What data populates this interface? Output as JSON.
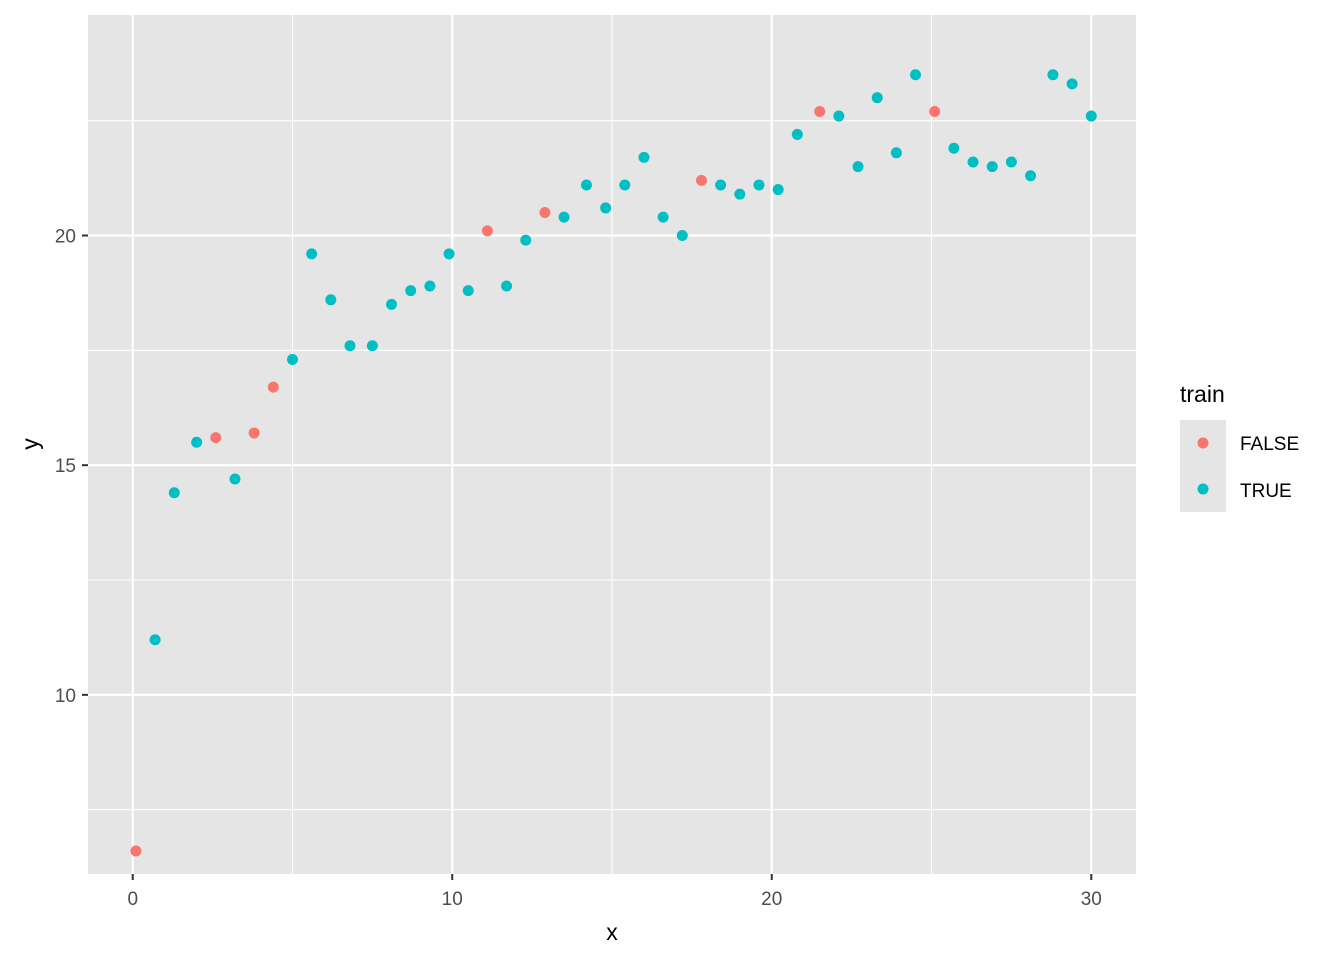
{
  "chart_data": {
    "type": "scatter",
    "xlabel": "x",
    "ylabel": "y",
    "xlim": [
      -1.4,
      31.4
    ],
    "ylim": [
      6.1,
      24.8
    ],
    "x_ticks": [
      0,
      10,
      20,
      30
    ],
    "x_tick_labels": [
      "0",
      "10",
      "20",
      "30"
    ],
    "y_ticks": [
      10,
      15,
      20
    ],
    "y_tick_labels": [
      "10",
      "15",
      "20"
    ],
    "x_minor_ticks": [
      5,
      15,
      25
    ],
    "y_minor_ticks": [
      7.5,
      12.5,
      17.5,
      22.5
    ],
    "grid": true,
    "legend": {
      "title": "train",
      "placement": "right",
      "entries": [
        {
          "label": "FALSE",
          "color": "#F8766D"
        },
        {
          "label": "TRUE",
          "color": "#00BFC4"
        }
      ]
    },
    "series": [
      {
        "name": "FALSE",
        "color": "#F8766D",
        "points": [
          [
            0.1,
            6.6
          ],
          [
            2.6,
            15.6
          ],
          [
            3.8,
            15.7
          ],
          [
            4.4,
            16.7
          ],
          [
            11.1,
            20.1
          ],
          [
            12.9,
            20.5
          ],
          [
            17.8,
            21.2
          ],
          [
            21.5,
            22.7
          ],
          [
            25.1,
            22.7
          ]
        ]
      },
      {
        "name": "TRUE",
        "color": "#00BFC4",
        "points": [
          [
            0.7,
            11.2
          ],
          [
            1.3,
            14.4
          ],
          [
            2.0,
            15.5
          ],
          [
            3.2,
            14.7
          ],
          [
            5.0,
            17.3
          ],
          [
            5.6,
            19.6
          ],
          [
            6.2,
            18.6
          ],
          [
            6.8,
            17.6
          ],
          [
            7.5,
            17.6
          ],
          [
            8.1,
            18.5
          ],
          [
            8.7,
            18.8
          ],
          [
            9.3,
            18.9
          ],
          [
            9.9,
            19.6
          ],
          [
            10.5,
            18.8
          ],
          [
            11.7,
            18.9
          ],
          [
            12.3,
            19.9
          ],
          [
            13.5,
            20.4
          ],
          [
            14.2,
            21.1
          ],
          [
            14.8,
            20.6
          ],
          [
            15.4,
            21.1
          ],
          [
            16.0,
            21.7
          ],
          [
            16.6,
            20.4
          ],
          [
            17.2,
            20.0
          ],
          [
            18.4,
            21.1
          ],
          [
            19.0,
            20.9
          ],
          [
            19.6,
            21.1
          ],
          [
            20.2,
            21.0
          ],
          [
            20.8,
            22.2
          ],
          [
            22.1,
            22.6
          ],
          [
            22.7,
            21.5
          ],
          [
            23.3,
            23.0
          ],
          [
            23.9,
            21.8
          ],
          [
            24.5,
            23.5
          ],
          [
            25.7,
            21.9
          ],
          [
            26.3,
            21.6
          ],
          [
            26.9,
            21.5
          ],
          [
            27.5,
            21.6
          ],
          [
            28.1,
            21.3
          ],
          [
            28.8,
            23.5
          ],
          [
            29.4,
            23.3
          ],
          [
            30.0,
            22.6
          ]
        ]
      }
    ]
  },
  "colors": {
    "panel_bg": "#E5E5E5",
    "grid": "#FFFFFF",
    "tick": "#333333",
    "tick_text": "#4D4D4D"
  }
}
